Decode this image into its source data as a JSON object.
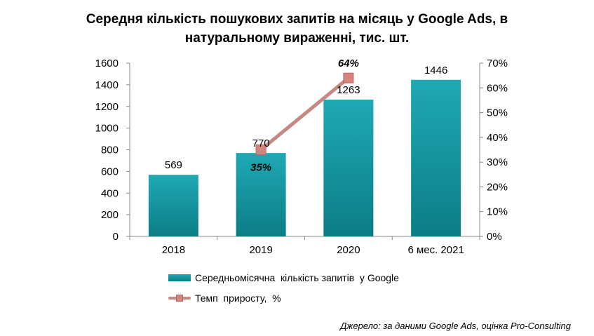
{
  "title_line1": "Середня кількість пошукових запитів на місяць у Google Ads, в",
  "title_line2": "натуральному вираженні, тис. шт.",
  "source": "Джерело: за даними Google Ads, оцінка Pro-Consulting",
  "colors": {
    "bar_top": "#1fa9b5",
    "bar_bottom": "#0c7d86",
    "line": "#c58883",
    "marker": "#d4847d"
  },
  "chart_data": {
    "type": "bar",
    "categories": [
      "2018",
      "2019",
      "2020",
      "6 мес. 2021"
    ],
    "series": [
      {
        "name": "Середньомісячна  кількість запитів  у Google",
        "type": "bar",
        "axis": "left",
        "values": [
          569,
          770,
          1263,
          1446
        ],
        "labels": [
          "569",
          "770",
          "1263",
          "1446"
        ]
      },
      {
        "name": "Темп  приросту,  %",
        "type": "line",
        "axis": "right",
        "values": [
          null,
          35,
          64,
          null
        ],
        "labels": [
          "",
          "35%",
          "64%",
          ""
        ]
      }
    ],
    "left_axis": {
      "ylim": [
        0,
        1600
      ],
      "ticks": [
        "0",
        "200",
        "400",
        "600",
        "800",
        "1000",
        "1200",
        "1400",
        "1600"
      ]
    },
    "right_axis": {
      "ylim": [
        0,
        70
      ],
      "ticks": [
        "0%",
        "10%",
        "20%",
        "30%",
        "40%",
        "50%",
        "60%",
        "70%"
      ]
    },
    "grid": false,
    "legend_position": "bottom"
  }
}
